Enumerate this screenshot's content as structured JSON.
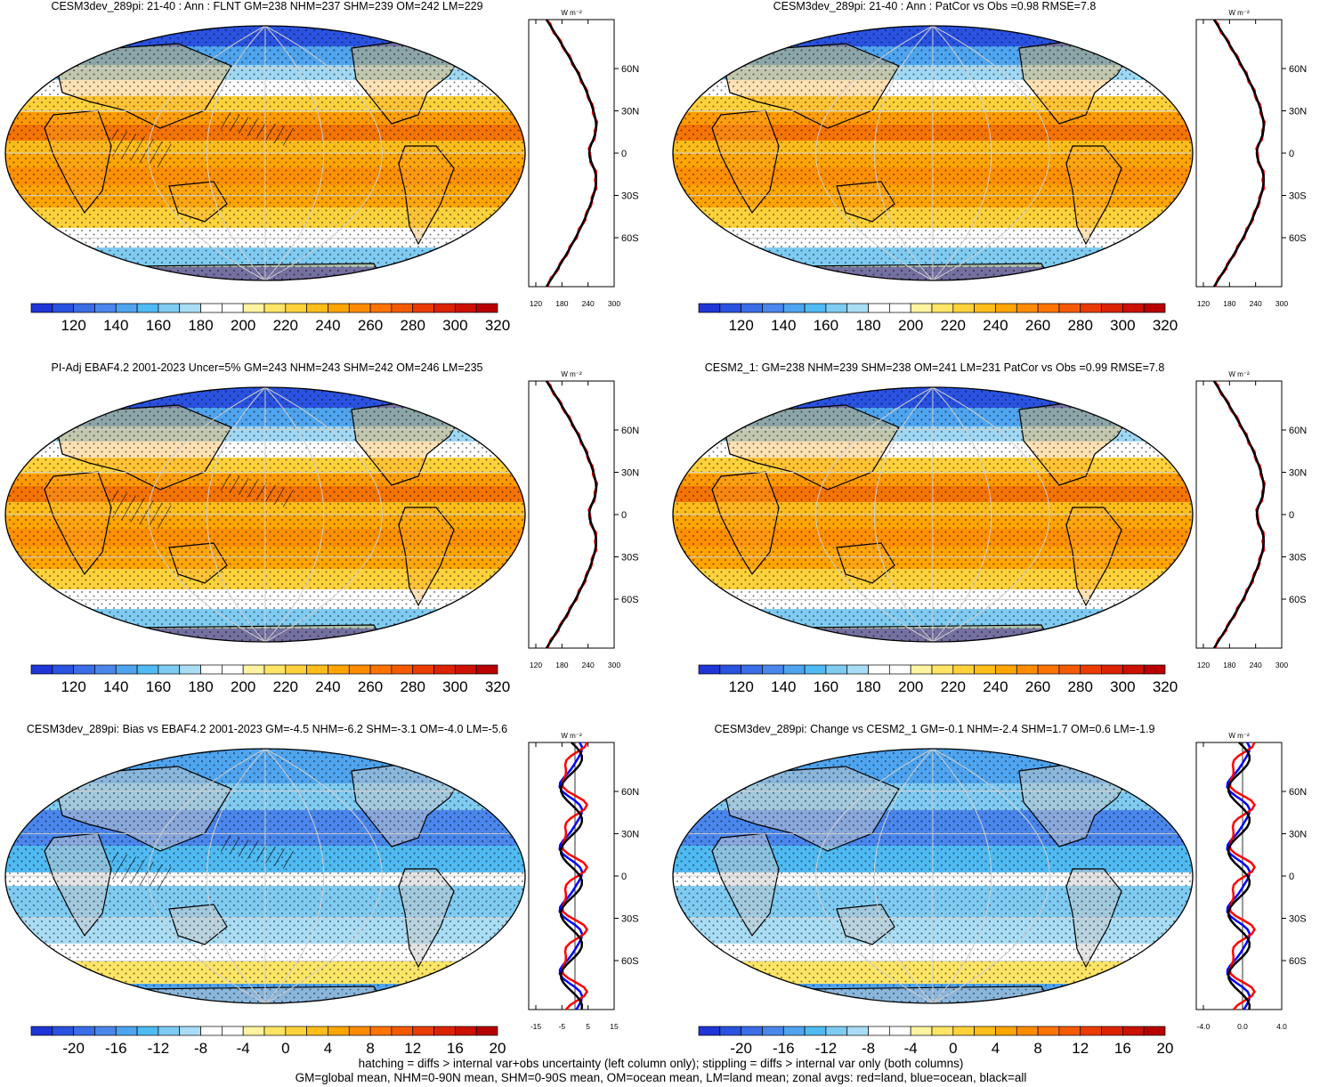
{
  "panels": [
    {
      "id": "p1",
      "title": "CESM3dev_289pi: 21-40 : Ann : FLNT GM=238 NHM=237 SHM=239 OM=242 LM=229",
      "type": "abs",
      "xticks": [
        "120",
        "180",
        "240",
        "300"
      ]
    },
    {
      "id": "p2",
      "title": "CESM3dev_289pi: 21-40 : Ann : PatCor vs Obs =0.98 RMSE=7.8",
      "type": "abs",
      "xticks": [
        "120",
        "180",
        "240",
        "300"
      ]
    },
    {
      "id": "p3",
      "title": "PI-Adj EBAF4.2 2001-2023 Uncer=5% GM=243 NHM=243 SHM=242 OM=246 LM=235",
      "type": "abs",
      "xticks": [
        "120",
        "180",
        "240",
        "300"
      ]
    },
    {
      "id": "p4",
      "title": "CESM2_1: GM=238 NHM=239 SHM=238 OM=241 LM=231 PatCor vs Obs =0.99 RMSE=7.8",
      "type": "abs",
      "xticks": [
        "120",
        "180",
        "240",
        "300"
      ]
    },
    {
      "id": "p5",
      "title": "CESM3dev_289pi: Bias vs EBAF4.2 2001-2023 GM=-4.5 NHM=-6.2 SHM=-3.1 OM=-4.0 LM=-5.6",
      "type": "diff",
      "xticks": [
        "-15",
        "-5",
        "5",
        "15"
      ]
    },
    {
      "id": "p6",
      "title": "CESM3dev_289pi: Change vs CESM2_1 GM=-0.1 NHM=-2.4 SHM=1.7 OM=0.6 LM=-1.9",
      "type": "diff",
      "xticks": [
        "-4.0",
        "0.0",
        "4.0"
      ]
    }
  ],
  "lat_labels": [
    "60N",
    "30N",
    "0",
    "30S",
    "60S"
  ],
  "units": "W m⁻²",
  "colorbar_abs": {
    "labels": [
      "120",
      "140",
      "160",
      "180",
      "200",
      "220",
      "240",
      "260",
      "280",
      "300",
      "320"
    ],
    "colors": [
      "#1f35d6",
      "#2a52e0",
      "#3a6de6",
      "#4a86ec",
      "#4fa4ef",
      "#50baf2",
      "#7fcbf2",
      "#a9ddf5",
      "#ffffff",
      "#ffffff",
      "#fff3a0",
      "#ffe566",
      "#ffd23c",
      "#ffbd1a",
      "#ffa500",
      "#ff8c00",
      "#ff7300",
      "#f55a00",
      "#ea3c00",
      "#dd2200",
      "#cc1100",
      "#b80000"
    ]
  },
  "colorbar_diff": {
    "labels": [
      "-20",
      "-16",
      "-12",
      "-8",
      "-4",
      "0",
      "4",
      "8",
      "12",
      "16",
      "20"
    ],
    "colors": [
      "#1f35d6",
      "#2a52e0",
      "#3a6de6",
      "#4a86ec",
      "#4fa4ef",
      "#50baf2",
      "#7fcbf2",
      "#a9ddf5",
      "#ffffff",
      "#ffffff",
      "#fff3a0",
      "#ffe566",
      "#ffd23c",
      "#ffbd1a",
      "#ffa500",
      "#ff8c00",
      "#ff7300",
      "#f55a00",
      "#ea3c00",
      "#dd2200",
      "#cc1100",
      "#b80000"
    ]
  },
  "footer": {
    "line1": "hatching = diffs > internal var+obs uncertainty (left column only); stippling = diffs > internal var only (both columns)",
    "line2": "GM=global mean, NHM=0-90N mean, SHM=0-90S mean, OM=ocean mean, LM=land mean; zonal avgs: red=land, blue=ocean, black=all"
  }
}
